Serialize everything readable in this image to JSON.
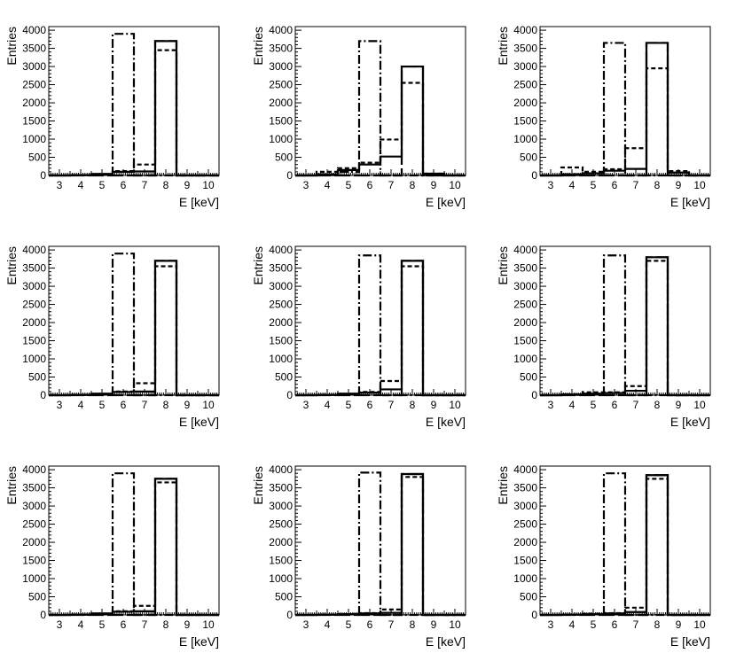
{
  "line_styles": {
    "solid": "solid",
    "dashed": "dashed",
    "dashdot": "dash-dot",
    "longdash": "long-dash"
  },
  "chart_data": [
    {
      "type": "histogram",
      "xlabel": "E [keV]",
      "ylabel": "Entries",
      "xlim": [
        2.5,
        10.5
      ],
      "ylim": [
        0,
        4100
      ],
      "xticks": [
        "3",
        "4",
        "5",
        "6",
        "7",
        "8",
        "9",
        "10"
      ],
      "yticks": [
        "0",
        "500",
        "1000",
        "1500",
        "2000",
        "2500",
        "3000",
        "3500",
        "4000"
      ],
      "bin_edges": [
        2.5,
        3.5,
        4.5,
        5.5,
        6.5,
        7.5,
        8.5,
        9.5,
        10.5
      ],
      "series": [
        {
          "style": "solid",
          "values": [
            0,
            10,
            40,
            100,
            110,
            3700,
            0,
            0
          ]
        },
        {
          "style": "dashed",
          "values": [
            0,
            10,
            30,
            120,
            300,
            3450,
            0,
            0
          ]
        },
        {
          "style": "dashdot",
          "values": [
            0,
            10,
            20,
            3900,
            0,
            0,
            0,
            0
          ]
        },
        {
          "style": "longdash",
          "values": [
            0,
            0,
            0,
            0,
            0,
            3700,
            0,
            0
          ]
        }
      ]
    },
    {
      "type": "histogram",
      "xlabel": "E [keV]",
      "ylabel": "Entries",
      "xlim": [
        2.5,
        10.5
      ],
      "ylim": [
        0,
        4100
      ],
      "xticks": [
        "3",
        "4",
        "5",
        "6",
        "7",
        "8",
        "9",
        "10"
      ],
      "yticks": [
        "0",
        "500",
        "1000",
        "1500",
        "2000",
        "2500",
        "3000",
        "3500",
        "4000"
      ],
      "bin_edges": [
        2.5,
        3.5,
        4.5,
        5.5,
        6.5,
        7.5,
        8.5,
        9.5,
        10.5
      ],
      "series": [
        {
          "style": "solid",
          "values": [
            0,
            30,
            150,
            300,
            520,
            3000,
            50,
            0
          ]
        },
        {
          "style": "dashed",
          "values": [
            0,
            100,
            200,
            350,
            990,
            2550,
            50,
            0
          ]
        },
        {
          "style": "dashdot",
          "values": [
            0,
            10,
            100,
            3700,
            0,
            0,
            0,
            0
          ]
        },
        {
          "style": "longdash",
          "values": [
            0,
            0,
            0,
            0,
            0,
            3000,
            0,
            0
          ]
        }
      ]
    },
    {
      "type": "histogram",
      "xlabel": "E [keV]",
      "ylabel": "Entries",
      "xlim": [
        2.5,
        10.5
      ],
      "ylim": [
        0,
        4100
      ],
      "xticks": [
        "3",
        "4",
        "5",
        "6",
        "7",
        "8",
        "9",
        "10"
      ],
      "yticks": [
        "0",
        "500",
        "1000",
        "1500",
        "2000",
        "2500",
        "3000",
        "3500",
        "4000"
      ],
      "bin_edges": [
        2.5,
        3.5,
        4.5,
        5.5,
        6.5,
        7.5,
        8.5,
        9.5,
        10.5
      ],
      "series": [
        {
          "style": "solid",
          "values": [
            0,
            30,
            60,
            130,
            180,
            3650,
            80,
            0
          ]
        },
        {
          "style": "dashed",
          "values": [
            0,
            220,
            100,
            170,
            750,
            2950,
            120,
            0
          ]
        },
        {
          "style": "dashdot",
          "values": [
            0,
            10,
            60,
            3650,
            0,
            0,
            0,
            0
          ]
        },
        {
          "style": "longdash",
          "values": [
            0,
            0,
            0,
            0,
            0,
            3650,
            0,
            0
          ]
        }
      ]
    },
    {
      "type": "histogram",
      "xlabel": "E [keV]",
      "ylabel": "Entries",
      "xlim": [
        2.5,
        10.5
      ],
      "ylim": [
        0,
        4100
      ],
      "xticks": [
        "3",
        "4",
        "5",
        "6",
        "7",
        "8",
        "9",
        "10"
      ],
      "yticks": [
        "0",
        "500",
        "1000",
        "1500",
        "2000",
        "2500",
        "3000",
        "3500",
        "4000"
      ],
      "bin_edges": [
        2.5,
        3.5,
        4.5,
        5.5,
        6.5,
        7.5,
        8.5,
        9.5,
        10.5
      ],
      "series": [
        {
          "style": "solid",
          "values": [
            0,
            10,
            40,
            90,
            100,
            3700,
            0,
            0
          ]
        },
        {
          "style": "dashed",
          "values": [
            0,
            10,
            30,
            100,
            330,
            3550,
            0,
            0
          ]
        },
        {
          "style": "dashdot",
          "values": [
            0,
            10,
            20,
            3900,
            0,
            0,
            0,
            0
          ]
        },
        {
          "style": "longdash",
          "values": [
            0,
            0,
            0,
            0,
            0,
            3700,
            0,
            0
          ]
        }
      ]
    },
    {
      "type": "histogram",
      "xlabel": "E [keV]",
      "ylabel": "Entries",
      "xlim": [
        2.5,
        10.5
      ],
      "ylim": [
        0,
        4100
      ],
      "xticks": [
        "3",
        "4",
        "5",
        "6",
        "7",
        "8",
        "9",
        "10"
      ],
      "yticks": [
        "0",
        "500",
        "1000",
        "1500",
        "2000",
        "2500",
        "3000",
        "3500",
        "4000"
      ],
      "bin_edges": [
        2.5,
        3.5,
        4.5,
        5.5,
        6.5,
        7.5,
        8.5,
        9.5,
        10.5
      ],
      "series": [
        {
          "style": "solid",
          "values": [
            0,
            10,
            40,
            70,
            160,
            3700,
            0,
            0
          ]
        },
        {
          "style": "dashed",
          "values": [
            0,
            10,
            30,
            90,
            390,
            3550,
            0,
            0
          ]
        },
        {
          "style": "dashdot",
          "values": [
            0,
            10,
            20,
            3850,
            0,
            0,
            0,
            0
          ]
        },
        {
          "style": "longdash",
          "values": [
            0,
            0,
            0,
            0,
            0,
            3700,
            0,
            0
          ]
        }
      ]
    },
    {
      "type": "histogram",
      "xlabel": "E [keV]",
      "ylabel": "Entries",
      "xlim": [
        2.5,
        10.5
      ],
      "ylim": [
        0,
        4100
      ],
      "xticks": [
        "3",
        "4",
        "5",
        "6",
        "7",
        "8",
        "9",
        "10"
      ],
      "yticks": [
        "0",
        "500",
        "1000",
        "1500",
        "2000",
        "2500",
        "3000",
        "3500",
        "4000"
      ],
      "bin_edges": [
        2.5,
        3.5,
        4.5,
        5.5,
        6.5,
        7.5,
        8.5,
        9.5,
        10.5
      ],
      "series": [
        {
          "style": "solid",
          "values": [
            0,
            20,
            40,
            60,
            120,
            3800,
            0,
            0
          ]
        },
        {
          "style": "dashed",
          "values": [
            0,
            20,
            80,
            80,
            250,
            3700,
            0,
            0
          ]
        },
        {
          "style": "dashdot",
          "values": [
            0,
            10,
            20,
            3850,
            0,
            0,
            0,
            0
          ]
        },
        {
          "style": "longdash",
          "values": [
            0,
            0,
            0,
            0,
            0,
            3800,
            0,
            0
          ]
        }
      ]
    },
    {
      "type": "histogram",
      "xlabel": "E [keV]",
      "ylabel": "Entries",
      "xlim": [
        2.5,
        10.5
      ],
      "ylim": [
        0,
        4100
      ],
      "xticks": [
        "3",
        "4",
        "5",
        "6",
        "7",
        "8",
        "9",
        "10"
      ],
      "yticks": [
        "0",
        "500",
        "1000",
        "1500",
        "2000",
        "2500",
        "3000",
        "3500",
        "4000"
      ],
      "bin_edges": [
        2.5,
        3.5,
        4.5,
        5.5,
        6.5,
        7.5,
        8.5,
        9.5,
        10.5
      ],
      "series": [
        {
          "style": "solid",
          "values": [
            0,
            10,
            40,
            90,
            100,
            3750,
            0,
            0
          ]
        },
        {
          "style": "dashed",
          "values": [
            0,
            10,
            30,
            100,
            250,
            3650,
            0,
            0
          ]
        },
        {
          "style": "dashdot",
          "values": [
            0,
            10,
            20,
            3900,
            0,
            0,
            0,
            0
          ]
        },
        {
          "style": "longdash",
          "values": [
            0,
            0,
            0,
            0,
            0,
            3750,
            0,
            0
          ]
        }
      ]
    },
    {
      "type": "histogram",
      "xlabel": "E [keV]",
      "ylabel": "Entries",
      "xlim": [
        2.5,
        10.5
      ],
      "ylim": [
        0,
        4100
      ],
      "xticks": [
        "3",
        "4",
        "5",
        "6",
        "7",
        "8",
        "9",
        "10"
      ],
      "yticks": [
        "0",
        "500",
        "1000",
        "1500",
        "2000",
        "2500",
        "3000",
        "3500",
        "4000"
      ],
      "bin_edges": [
        2.5,
        3.5,
        4.5,
        5.5,
        6.5,
        7.5,
        8.5,
        9.5,
        10.5
      ],
      "series": [
        {
          "style": "solid",
          "values": [
            0,
            10,
            20,
            40,
            60,
            3880,
            0,
            0
          ]
        },
        {
          "style": "dashed",
          "values": [
            0,
            10,
            20,
            50,
            150,
            3800,
            0,
            0
          ]
        },
        {
          "style": "dashdot",
          "values": [
            0,
            10,
            20,
            3920,
            0,
            0,
            0,
            0
          ]
        },
        {
          "style": "longdash",
          "values": [
            0,
            0,
            0,
            0,
            0,
            3880,
            0,
            0
          ]
        }
      ]
    },
    {
      "type": "histogram",
      "xlabel": "E [keV]",
      "ylabel": "Entries",
      "xlim": [
        2.5,
        10.5
      ],
      "ylim": [
        0,
        4100
      ],
      "xticks": [
        "3",
        "4",
        "5",
        "6",
        "7",
        "8",
        "9",
        "10"
      ],
      "yticks": [
        "0",
        "500",
        "1000",
        "1500",
        "2000",
        "2500",
        "3000",
        "3500",
        "4000"
      ],
      "bin_edges": [
        2.5,
        3.5,
        4.5,
        5.5,
        6.5,
        7.5,
        8.5,
        9.5,
        10.5
      ],
      "series": [
        {
          "style": "solid",
          "values": [
            0,
            10,
            20,
            40,
            80,
            3850,
            0,
            0
          ]
        },
        {
          "style": "dashed",
          "values": [
            0,
            10,
            30,
            50,
            200,
            3750,
            0,
            0
          ]
        },
        {
          "style": "dashdot",
          "values": [
            0,
            10,
            20,
            3900,
            0,
            0,
            0,
            0
          ]
        },
        {
          "style": "longdash",
          "values": [
            0,
            0,
            0,
            0,
            0,
            3850,
            0,
            0
          ]
        }
      ]
    }
  ]
}
